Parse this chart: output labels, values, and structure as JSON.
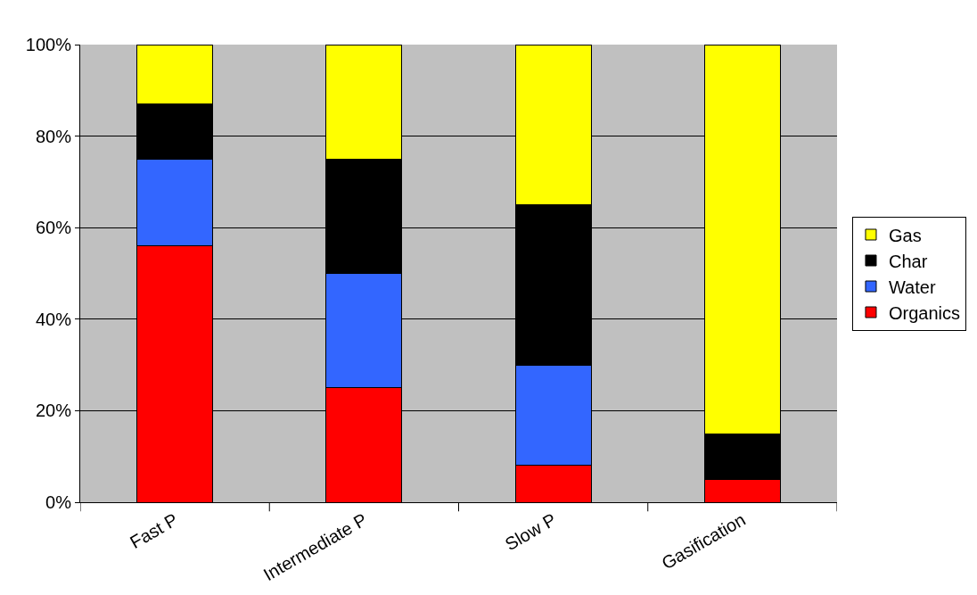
{
  "chart_data": {
    "type": "bar",
    "stacked": true,
    "categories": [
      "Fast P",
      "Intermediate P",
      "Slow P",
      "Gasification"
    ],
    "series": [
      {
        "name": "Organics",
        "color": "#ff0000",
        "values": [
          56,
          25,
          8,
          5
        ]
      },
      {
        "name": "Water",
        "color": "#3366ff",
        "values": [
          19,
          25,
          22,
          0
        ]
      },
      {
        "name": "Char",
        "color": "#000000",
        "values": [
          12,
          25,
          35,
          10
        ]
      },
      {
        "name": "Gas",
        "color": "#ffff00",
        "values": [
          13,
          25,
          35,
          85
        ]
      }
    ],
    "ylim": [
      0,
      100
    ],
    "yticks": [
      {
        "value": 0,
        "label": "0%"
      },
      {
        "value": 20,
        "label": "20%"
      },
      {
        "value": 40,
        "label": "40%"
      },
      {
        "value": 60,
        "label": "60%"
      },
      {
        "value": 80,
        "label": "80%"
      },
      {
        "value": 100,
        "label": "100%"
      }
    ],
    "grid": "y",
    "legend": "right"
  }
}
